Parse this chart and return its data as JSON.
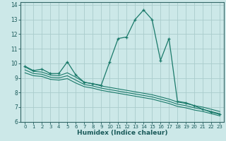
{
  "xlabel": "Humidex (Indice chaleur)",
  "bg_color": "#cce8e8",
  "grid_color": "#aacccc",
  "line_color": "#1a7a6a",
  "xlim": [
    -0.5,
    23.5
  ],
  "ylim": [
    6,
    14.2
  ],
  "yticks": [
    6,
    7,
    8,
    9,
    10,
    11,
    12,
    13,
    14
  ],
  "xticks": [
    0,
    1,
    2,
    3,
    4,
    5,
    6,
    7,
    8,
    9,
    10,
    11,
    12,
    13,
    14,
    15,
    16,
    17,
    18,
    19,
    20,
    21,
    22,
    23
  ],
  "lines": [
    {
      "x": [
        0,
        1,
        2,
        3,
        4,
        5,
        6,
        7,
        8,
        9,
        10,
        11,
        12,
        13,
        14,
        15,
        16,
        17,
        18,
        19,
        20,
        21,
        22,
        23
      ],
      "y": [
        9.8,
        9.5,
        9.6,
        9.3,
        9.3,
        10.1,
        9.2,
        8.7,
        8.6,
        8.5,
        10.1,
        11.7,
        11.8,
        13.0,
        13.65,
        13.0,
        10.2,
        11.7,
        7.4,
        7.3,
        7.1,
        6.85,
        6.65,
        6.5
      ],
      "marker": true
    },
    {
      "x": [
        0,
        1,
        2,
        3,
        4,
        5,
        6,
        7,
        8,
        9,
        10,
        11,
        12,
        13,
        14,
        15,
        16,
        17,
        18,
        19,
        20,
        21,
        22,
        23
      ],
      "y": [
        9.75,
        9.45,
        9.4,
        9.2,
        9.15,
        9.35,
        9.05,
        8.7,
        8.6,
        8.45,
        8.35,
        8.25,
        8.15,
        8.05,
        7.95,
        7.85,
        7.7,
        7.55,
        7.35,
        7.25,
        7.1,
        7.0,
        6.85,
        6.7
      ],
      "marker": false
    },
    {
      "x": [
        0,
        1,
        2,
        3,
        4,
        5,
        6,
        7,
        8,
        9,
        10,
        11,
        12,
        13,
        14,
        15,
        16,
        17,
        18,
        19,
        20,
        21,
        22,
        23
      ],
      "y": [
        9.55,
        9.3,
        9.25,
        9.05,
        9.0,
        9.15,
        8.85,
        8.55,
        8.45,
        8.3,
        8.2,
        8.1,
        8.0,
        7.9,
        7.8,
        7.7,
        7.55,
        7.4,
        7.2,
        7.1,
        6.95,
        6.85,
        6.7,
        6.55
      ],
      "marker": false
    },
    {
      "x": [
        0,
        1,
        2,
        3,
        4,
        5,
        6,
        7,
        8,
        9,
        10,
        11,
        12,
        13,
        14,
        15,
        16,
        17,
        18,
        19,
        20,
        21,
        22,
        23
      ],
      "y": [
        9.35,
        9.15,
        9.1,
        8.9,
        8.85,
        8.95,
        8.65,
        8.4,
        8.3,
        8.15,
        8.05,
        7.95,
        7.85,
        7.75,
        7.65,
        7.55,
        7.4,
        7.25,
        7.05,
        6.95,
        6.8,
        6.7,
        6.55,
        6.4
      ],
      "marker": false
    }
  ]
}
